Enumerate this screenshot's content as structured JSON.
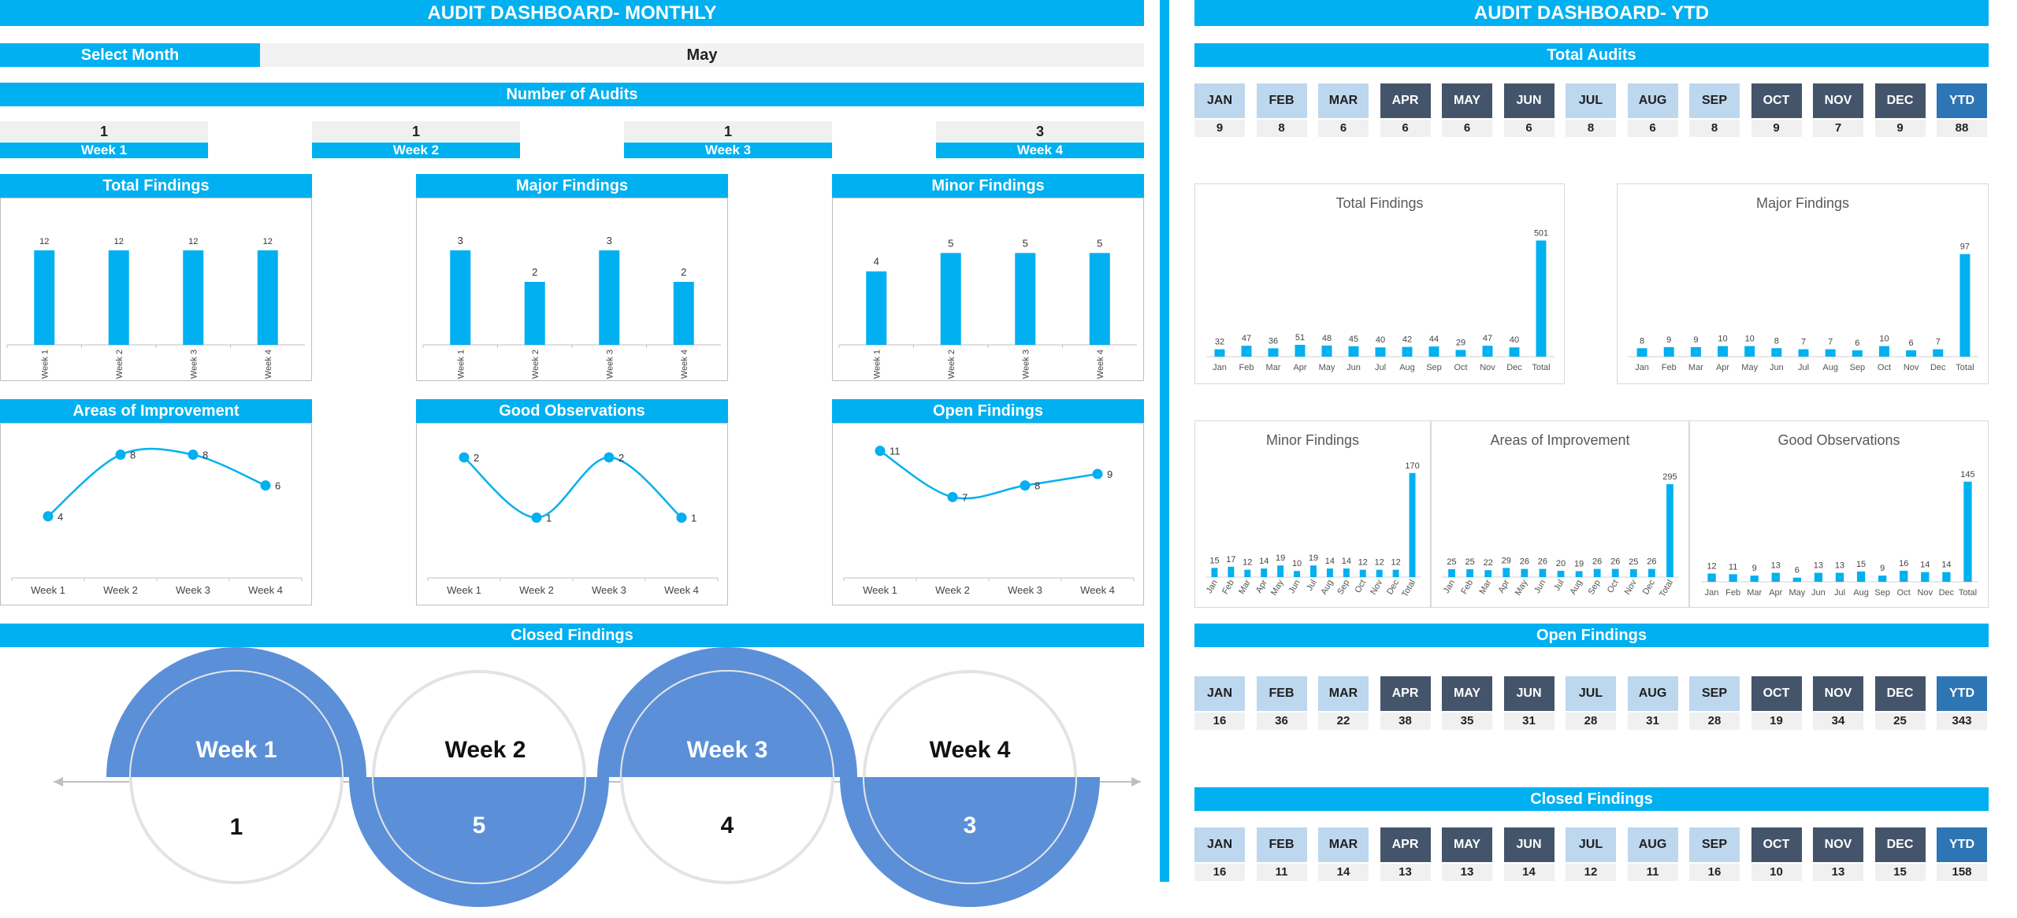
{
  "monthly": {
    "title": "AUDIT DASHBOARD- MONTHLY",
    "select_month_label": "Select Month",
    "selected_month": "May",
    "number_of_audits_label": "Number of Audits",
    "audits": [
      {
        "week": "Week 1",
        "value": "1"
      },
      {
        "week": "Week 2",
        "value": "1"
      },
      {
        "week": "Week 3",
        "value": "1"
      },
      {
        "week": "Week 4",
        "value": "3"
      }
    ],
    "panel_titles": {
      "total_findings": "Total Findings",
      "major_findings": "Major Findings",
      "minor_findings": "Minor Findings",
      "areas_of_improvement": "Areas of Improvement",
      "good_observations": "Good Observations",
      "open_findings": "Open Findings"
    },
    "closed_findings": {
      "title": "Closed Findings",
      "weeks": [
        {
          "label": "Week 1",
          "value": "1"
        },
        {
          "label": "Week 2",
          "value": "5"
        },
        {
          "label": "Week 3",
          "value": "4"
        },
        {
          "label": "Week 4",
          "value": "3"
        }
      ]
    }
  },
  "ytd": {
    "title": "AUDIT DASHBOARD- YTD",
    "total_audits_label": "Total Audits",
    "open_findings_label": "Open Findings",
    "closed_findings_label": "Closed Findings",
    "months": [
      "JAN",
      "FEB",
      "MAR",
      "APR",
      "MAY",
      "JUN",
      "JUL",
      "AUG",
      "SEP",
      "OCT",
      "NOV",
      "DEC",
      "YTD"
    ],
    "total_audits": [
      "9",
      "8",
      "6",
      "6",
      "6",
      "6",
      "8",
      "6",
      "8",
      "9",
      "7",
      "9",
      "88"
    ],
    "open_findings": [
      "16",
      "36",
      "22",
      "38",
      "35",
      "31",
      "28",
      "31",
      "28",
      "19",
      "34",
      "25",
      "343"
    ],
    "closed_findings": [
      "16",
      "11",
      "14",
      "13",
      "13",
      "14",
      "12",
      "11",
      "16",
      "10",
      "13",
      "15",
      "158"
    ]
  },
  "colors": {
    "accent": "#00b0f0",
    "light_month": "#bdd7ee",
    "dark_month": "#44546a",
    "ytd": "#2e75b6",
    "circle_blue": "#5b8fd8",
    "light_gray": "#f0f0f0"
  },
  "chart_data": [
    {
      "id": "m-total",
      "type": "bar",
      "title": "Total Findings",
      "categories": [
        "Week 1",
        "Week 2",
        "Week 3",
        "Week 4"
      ],
      "values": [
        12,
        12,
        12,
        12
      ],
      "ylim": [
        0,
        14
      ]
    },
    {
      "id": "m-major",
      "type": "bar",
      "title": "Major Findings",
      "categories": [
        "Week 1",
        "Week 2",
        "Week 3",
        "Week 4"
      ],
      "values": [
        3,
        2,
        3,
        2
      ],
      "ylim": [
        0,
        3.5
      ]
    },
    {
      "id": "m-minor",
      "type": "bar",
      "title": "Minor Findings",
      "categories": [
        "Week 1",
        "Week 2",
        "Week 3",
        "Week 4"
      ],
      "values": [
        4,
        5,
        5,
        5
      ],
      "ylim": [
        0,
        6
      ]
    },
    {
      "id": "m-aoi",
      "type": "line",
      "title": "Areas of Improvement",
      "categories": [
        "Week 1",
        "Week 2",
        "Week 3",
        "Week 4"
      ],
      "values": [
        4,
        8,
        8,
        6
      ],
      "ylim": [
        0,
        9
      ]
    },
    {
      "id": "m-good",
      "type": "line",
      "title": "Good Observations",
      "categories": [
        "Week 1",
        "Week 2",
        "Week 3",
        "Week 4"
      ],
      "values": [
        2,
        1,
        2,
        1
      ],
      "ylim": [
        0,
        2.3
      ]
    },
    {
      "id": "m-open",
      "type": "line",
      "title": "Open Findings",
      "categories": [
        "Week 1",
        "Week 2",
        "Week 3",
        "Week 4"
      ],
      "values": [
        11,
        7,
        8,
        9
      ],
      "ylim": [
        0,
        12
      ]
    },
    {
      "id": "y-total",
      "type": "bar",
      "title": "Total Findings",
      "categories": [
        "Jan",
        "Feb",
        "Mar",
        "Apr",
        "May",
        "Jun",
        "Jul",
        "Aug",
        "Sep",
        "Oct",
        "Nov",
        "Dec",
        "Total"
      ],
      "values": [
        32,
        47,
        36,
        51,
        48,
        45,
        40,
        42,
        44,
        29,
        47,
        40,
        501
      ],
      "ylim": [
        0,
        540
      ]
    },
    {
      "id": "y-major",
      "type": "bar",
      "title": "Major Findings",
      "categories": [
        "Jan",
        "Feb",
        "Mar",
        "Apr",
        "May",
        "Jun",
        "Jul",
        "Aug",
        "Sep",
        "Oct",
        "Nov",
        "Dec",
        "Total"
      ],
      "values": [
        8,
        9,
        9,
        10,
        10,
        8,
        7,
        7,
        6,
        10,
        6,
        7,
        97
      ],
      "ylim": [
        0,
        105
      ]
    },
    {
      "id": "y-minor",
      "type": "bar",
      "title": "Minor Findings",
      "categories": [
        "Jan",
        "Feb",
        "Mar",
        "Apr",
        "May",
        "Jun",
        "Jul",
        "Aug",
        "Sep",
        "Oct",
        "Nov",
        "Dec",
        "Total"
      ],
      "values": [
        15,
        17,
        12,
        14,
        19,
        10,
        19,
        14,
        14,
        12,
        12,
        12,
        170
      ],
      "ylim": [
        0,
        180
      ]
    },
    {
      "id": "y-aoi",
      "type": "bar",
      "title": "Areas of Improvement",
      "categories": [
        "Jan",
        "Feb",
        "Mar",
        "Apr",
        "May",
        "Jun",
        "Jul",
        "Aug",
        "Sep",
        "Oct",
        "Nov",
        "Dec",
        "Total"
      ],
      "values": [
        25,
        25,
        22,
        29,
        26,
        26,
        20,
        19,
        26,
        26,
        25,
        26,
        295
      ],
      "ylim": [
        0,
        320
      ]
    },
    {
      "id": "y-good",
      "type": "bar",
      "title": "Good Observations",
      "categories": [
        "Jan",
        "Feb",
        "Mar",
        "Apr",
        "May",
        "Jun",
        "Jul",
        "Aug",
        "Sep",
        "Oct",
        "Nov",
        "Dec",
        "Total"
      ],
      "values": [
        12,
        11,
        9,
        13,
        6,
        13,
        13,
        15,
        9,
        16,
        14,
        14,
        145
      ],
      "ylim": [
        0,
        155
      ]
    }
  ]
}
